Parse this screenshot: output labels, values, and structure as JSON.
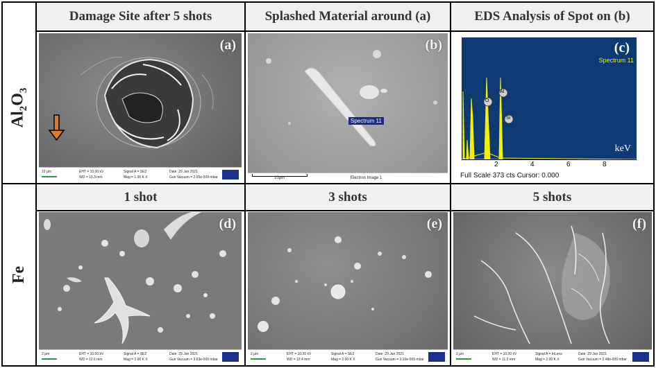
{
  "columns": [
    {
      "title": "Damage Site after 5 shots"
    },
    {
      "title": "Splashed Material around (a)"
    },
    {
      "title": "EDS Analysis of Spot on (b)"
    }
  ],
  "rows": [
    {
      "label": "Al2O3"
    },
    {
      "label": "Fe"
    }
  ],
  "fe_headers": [
    "1 shot",
    "3 shots",
    "5 shots"
  ],
  "panels": {
    "a": {
      "tag": "(a)",
      "scale": "10 µm",
      "eht": "EHT = 10.00 kV",
      "wd": "WD = 13.3 mm",
      "signal": "Signal A = SE2",
      "mag": "Mag = 1.00 K X",
      "date": "Date :29 Jan 2021",
      "vac": "Gun Vacuum = 2.05e-009 mbar"
    },
    "b": {
      "tag": "(b)",
      "spectrum": "Spectrum 11",
      "scale": "10µm",
      "caption": "Electron Image 1"
    },
    "c": {
      "tag": "(c)",
      "spectrum": "Spectrum 11",
      "unit": "keV",
      "footer": "Full Scale 373 cts Cursor: 0.000",
      "ticks": [
        "2",
        "4",
        "6",
        "8"
      ],
      "peaks": [
        "O",
        "Al",
        "Si"
      ]
    },
    "d": {
      "tag": "(d)",
      "scale": "2 µm",
      "eht": "EHT = 10.00 kV",
      "wd": "WD = 12.6 mm",
      "signal": "Signal A = SE2",
      "mag": "Mag = 2.00 K X",
      "date": "Date :29 Jan 2021",
      "vac": "Gun Vacuum = 3.63e-009 mbar"
    },
    "e": {
      "tag": "(e)",
      "scale": "2 µm",
      "eht": "EHT = 10.00 kV",
      "wd": "WD = 12.4 mm",
      "signal": "Signal A = SE2",
      "mag": "Mag = 2.00 K X",
      "date": "Date :29 Jan 2021",
      "vac": "Gun Vacuum = 3.10e-009 mbar"
    },
    "f": {
      "tag": "(f)",
      "scale": "2 µm",
      "eht": "EHT = 10.00 kV",
      "wd": "WD = 11.2 mm",
      "signal": "Signal A = InLens",
      "mag": "Mag = 2.00 K X",
      "date": "Date :29 Jan 2021",
      "vac": "Gun Vacuum = 2.48e-009 mbar"
    }
  },
  "colors": {
    "eds_bg": "#0d3a73",
    "eds_peak": "#f5f000",
    "zeiss": "#1c2f8c",
    "arrow": "#e07b2a"
  }
}
